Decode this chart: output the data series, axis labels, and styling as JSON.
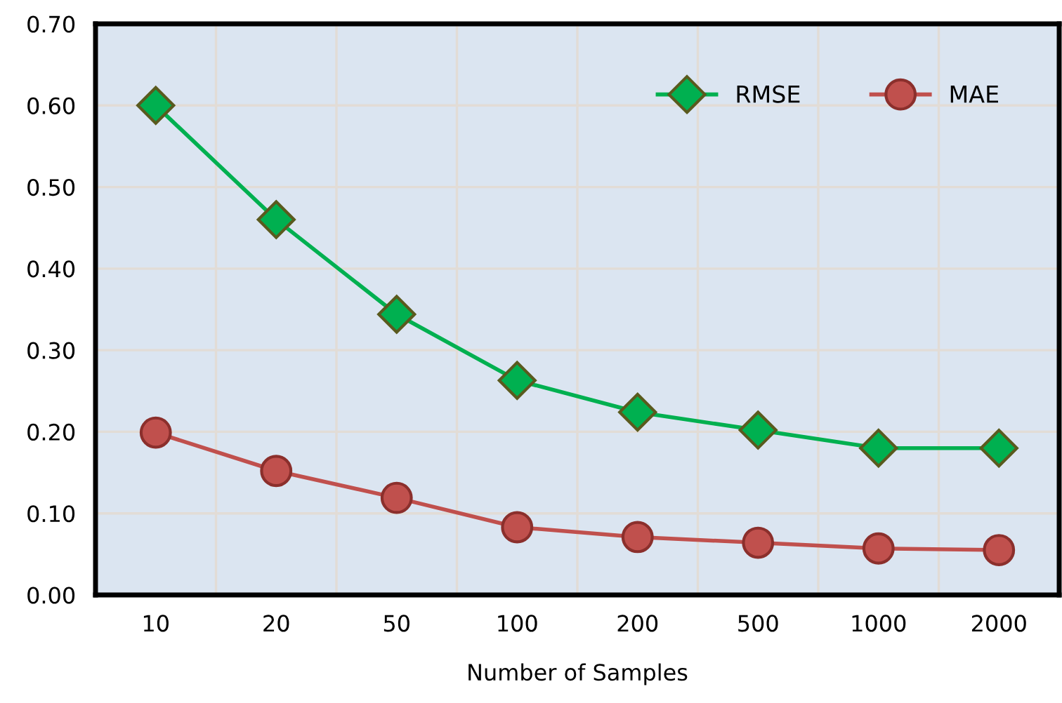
{
  "chart_data": {
    "type": "line",
    "xlabel": "Number of Samples",
    "categories": [
      "10",
      "20",
      "50",
      "100",
      "200",
      "500",
      "1000",
      "2000"
    ],
    "series": [
      {
        "name": "RMSE",
        "color": "#00b050",
        "marker": "diamond",
        "values": [
          0.6,
          0.46,
          0.344,
          0.263,
          0.224,
          0.202,
          0.18,
          0.18
        ]
      },
      {
        "name": "MAE",
        "color": "#c0504d",
        "marker": "circle",
        "values": [
          0.199,
          0.152,
          0.119,
          0.083,
          0.071,
          0.064,
          0.057,
          0.055
        ]
      }
    ],
    "ylim": [
      0,
      0.7
    ],
    "yticks": [
      {
        "value": 0,
        "label": "0.00"
      },
      {
        "value": 0.1,
        "label": "0.10"
      },
      {
        "value": 0.2,
        "label": "0.20"
      },
      {
        "value": 0.3,
        "label": "0.30"
      },
      {
        "value": 0.4,
        "label": "0.40"
      },
      {
        "value": 0.5,
        "label": "0.50"
      },
      {
        "value": 0.6,
        "label": "0.60"
      },
      {
        "value": 0.7,
        "label": "0.70"
      }
    ],
    "grid": true,
    "legend": "top right",
    "line_style": "solid"
  }
}
